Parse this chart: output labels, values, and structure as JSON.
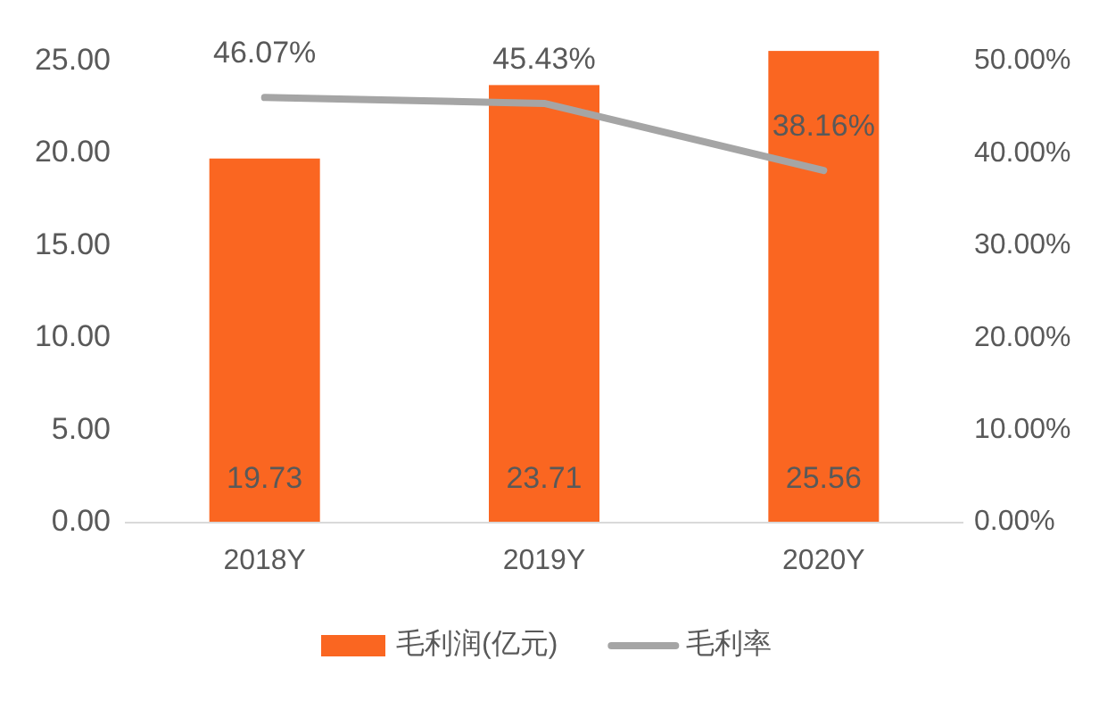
{
  "chart_data": {
    "type": "bar",
    "categories": [
      "2018Y",
      "2019Y",
      "2020Y"
    ],
    "series": [
      {
        "name": "毛利润(亿元)",
        "color": "#fa6621",
        "values": [
          19.73,
          23.71,
          25.56
        ],
        "value_labels": [
          "19.73",
          "23.71",
          "25.56"
        ]
      },
      {
        "name": "毛利率",
        "type": "line",
        "axis": "y2",
        "color": "#a5a5a5",
        "values": [
          46.07,
          45.43,
          38.16
        ],
        "value_labels": [
          "46.07%",
          "45.43%",
          "38.16%"
        ]
      }
    ],
    "ylim": [
      0,
      26
    ],
    "yticks": [
      {
        "value": 0,
        "label": "0.00"
      },
      {
        "value": 5,
        "label": "5.00"
      },
      {
        "value": 10,
        "label": "10.00"
      },
      {
        "value": 15,
        "label": "15.00"
      },
      {
        "value": 20,
        "label": "20.00"
      },
      {
        "value": 25,
        "label": "25.00"
      }
    ],
    "y2lim": [
      0,
      52
    ],
    "y2ticks": [
      {
        "value": 0,
        "label": "0.00%"
      },
      {
        "value": 10,
        "label": "10.00%"
      },
      {
        "value": 20,
        "label": "20.00%"
      },
      {
        "value": 30,
        "label": "30.00%"
      },
      {
        "value": 40,
        "label": "40.00%"
      },
      {
        "value": 50,
        "label": "50.00%"
      }
    ],
    "grid": false,
    "legend": "bottom",
    "marker": "none",
    "line_style": "solid"
  }
}
